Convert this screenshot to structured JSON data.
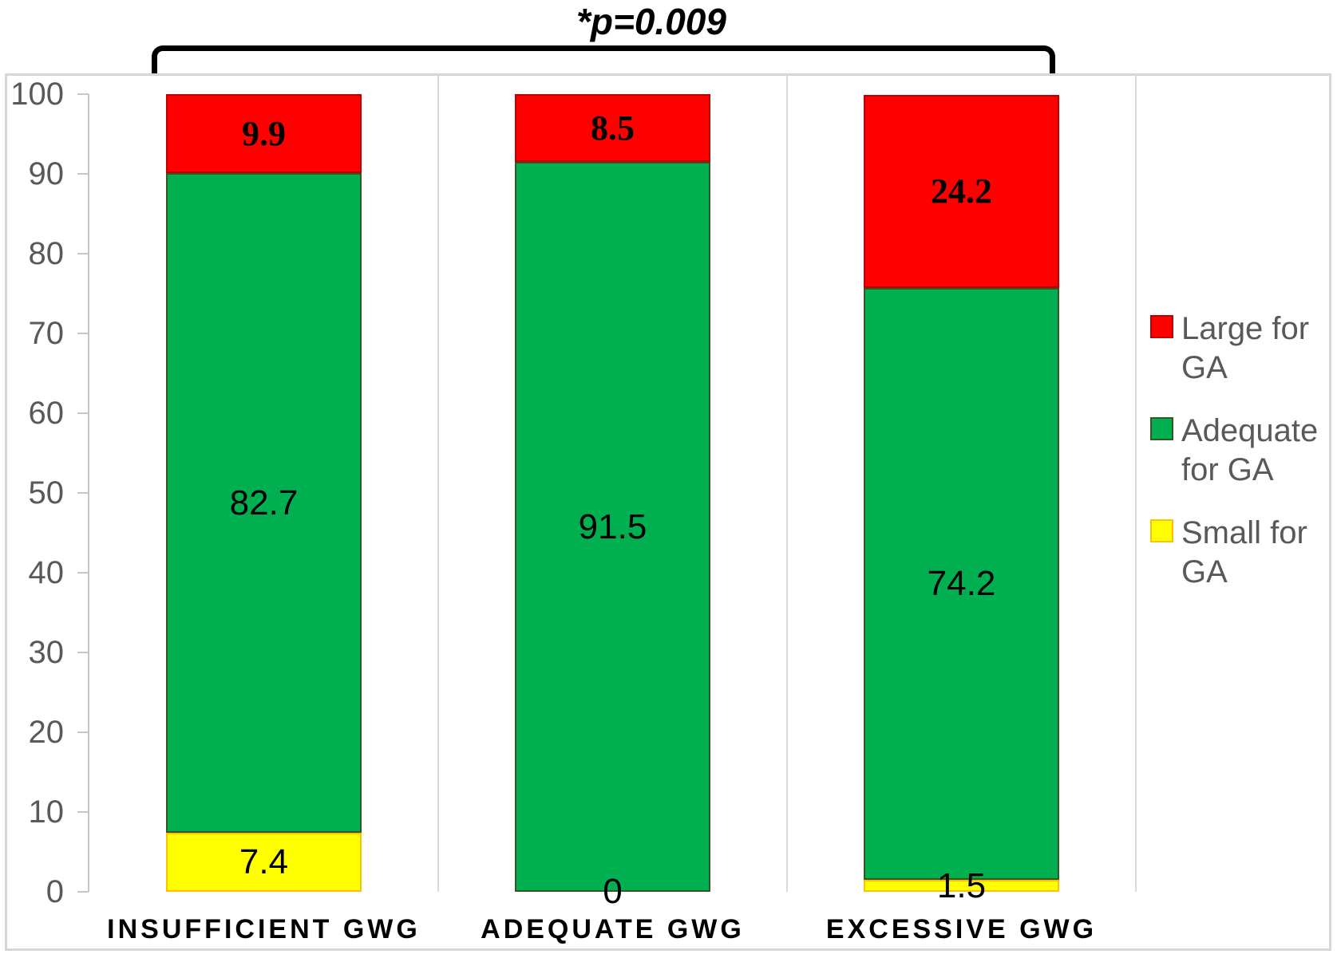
{
  "chart_data": {
    "type": "bar",
    "stacked": true,
    "orientation": "vertical",
    "title": "",
    "xlabel": "",
    "ylabel": "",
    "categories": [
      "INSUFFICIENT GWG",
      "ADEQUATE GWG",
      "EXCESSIVE GWG"
    ],
    "series": [
      {
        "name": "Small for GA",
        "values": [
          7.4,
          0,
          1.5
        ],
        "color": "#FFFF00",
        "border_color": "#FFC000",
        "label_style": "sans"
      },
      {
        "name": "Adequate for GA",
        "values": [
          82.7,
          91.5,
          74.2
        ],
        "color": "#00B050",
        "border_color": "#375623",
        "label_style": "sans"
      },
      {
        "name": "Large for GA",
        "values": [
          9.9,
          8.5,
          24.2
        ],
        "color": "#FF0000",
        "border_color": "#C00000",
        "label_style": "serif-bold"
      }
    ],
    "ylim": [
      0,
      100
    ],
    "yticks": [
      0,
      10,
      20,
      30,
      40,
      50,
      60,
      70,
      80,
      90,
      100
    ],
    "grid": "off",
    "data_labels": "center",
    "legend": {
      "position": "right",
      "entries": [
        "Large for GA",
        "Adequate for GA",
        "Small for GA"
      ]
    },
    "annotation": {
      "text": "*p=0.009",
      "spans": [
        "INSUFFICIENT GWG",
        "EXCESSIVE GWG"
      ]
    }
  },
  "colors": {
    "axis_text": "#595959",
    "legend_text": "#595959",
    "data_label_text": "#000000",
    "category_label_text": "#000000",
    "bracket": "#000000",
    "frame_border": "#D6D6D6",
    "gridline": "#D9D9D9",
    "axis_line": "#C6C6C6"
  }
}
